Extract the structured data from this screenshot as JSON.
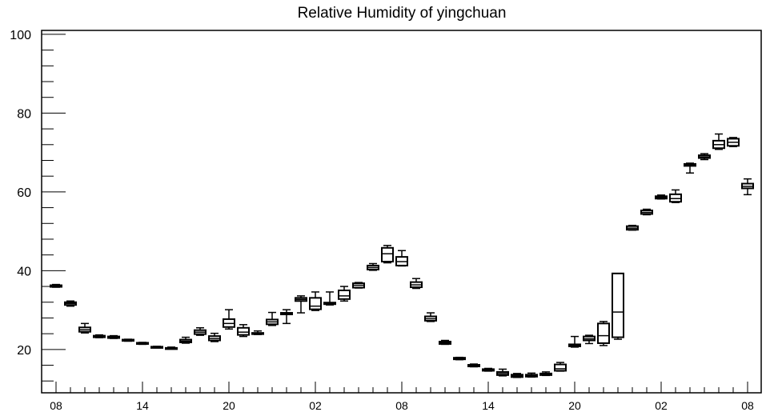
{
  "chart_data": {
    "type": "box",
    "title": "Relative Humidity of yingchuan",
    "xlabel": "",
    "ylabel": "",
    "ylim": [
      9,
      101
    ],
    "yticks": [
      20,
      40,
      60,
      80,
      100
    ],
    "x_tick_labels": [
      "08",
      "14",
      "20",
      "02",
      "08",
      "14",
      "20",
      "02",
      "08"
    ],
    "x_tick_label_steps": [
      0,
      6,
      12,
      18,
      24,
      30,
      36,
      42,
      48
    ],
    "grid": false,
    "legend": "none",
    "boxes": [
      {
        "step": 0,
        "min": 35.8,
        "q1": 35.9,
        "median": 36.1,
        "q3": 36.3,
        "max": 36.5
      },
      {
        "step": 1,
        "min": 31.0,
        "q1": 31.3,
        "median": 31.7,
        "q3": 32.0,
        "max": 32.3
      },
      {
        "step": 2,
        "min": 24.2,
        "q1": 24.5,
        "median": 25.0,
        "q3": 25.6,
        "max": 26.6
      },
      {
        "step": 3,
        "min": 23.0,
        "q1": 23.1,
        "median": 23.3,
        "q3": 23.5,
        "max": 23.7
      },
      {
        "step": 4,
        "min": 22.8,
        "q1": 22.9,
        "median": 23.1,
        "q3": 23.3,
        "max": 23.5
      },
      {
        "step": 5,
        "min": 22.1,
        "q1": 22.2,
        "median": 22.4,
        "q3": 22.5,
        "max": 22.6
      },
      {
        "step": 6,
        "min": 21.3,
        "q1": 21.4,
        "median": 21.6,
        "q3": 21.7,
        "max": 21.8
      },
      {
        "step": 7,
        "min": 20.4,
        "q1": 20.5,
        "median": 20.6,
        "q3": 20.7,
        "max": 20.8
      },
      {
        "step": 8,
        "min": 20.1,
        "q1": 20.2,
        "median": 20.3,
        "q3": 20.4,
        "max": 20.6
      },
      {
        "step": 9,
        "min": 21.6,
        "q1": 21.8,
        "median": 22.1,
        "q3": 22.5,
        "max": 23.1
      },
      {
        "step": 10,
        "min": 23.6,
        "q1": 23.9,
        "median": 24.4,
        "q3": 24.9,
        "max": 25.5
      },
      {
        "step": 11,
        "min": 22.0,
        "q1": 22.3,
        "median": 22.8,
        "q3": 23.4,
        "max": 24.1
      },
      {
        "step": 12,
        "min": 25.2,
        "q1": 25.7,
        "median": 26.6,
        "q3": 27.7,
        "max": 30.1
      },
      {
        "step": 13,
        "min": 23.3,
        "q1": 23.7,
        "median": 24.4,
        "q3": 25.5,
        "max": 26.3
      },
      {
        "step": 14,
        "min": 23.8,
        "q1": 24.0,
        "median": 24.1,
        "q3": 24.2,
        "max": 24.7
      },
      {
        "step": 15,
        "min": 26.1,
        "q1": 26.4,
        "median": 27.0,
        "q3": 27.6,
        "max": 29.4
      },
      {
        "step": 16,
        "min": 26.6,
        "q1": 28.9,
        "median": 29.1,
        "q3": 29.3,
        "max": 30.1
      },
      {
        "step": 17,
        "min": 29.3,
        "q1": 32.3,
        "median": 32.7,
        "q3": 33.1,
        "max": 33.6
      },
      {
        "step": 18,
        "min": 29.9,
        "q1": 30.2,
        "median": 31.0,
        "q3": 33.1,
        "max": 34.6
      },
      {
        "step": 19,
        "min": 31.3,
        "q1": 31.5,
        "median": 31.7,
        "q3": 31.9,
        "max": 34.6
      },
      {
        "step": 20,
        "min": 32.3,
        "q1": 32.8,
        "median": 33.6,
        "q3": 35.0,
        "max": 36.0
      },
      {
        "step": 21,
        "min": 35.6,
        "q1": 35.7,
        "median": 36.3,
        "q3": 36.8,
        "max": 37.0
      },
      {
        "step": 22,
        "min": 40.1,
        "q1": 40.3,
        "median": 40.8,
        "q3": 41.3,
        "max": 41.8
      },
      {
        "step": 23,
        "min": 42.0,
        "q1": 42.3,
        "median": 44.3,
        "q3": 45.8,
        "max": 46.4
      },
      {
        "step": 24,
        "min": 41.2,
        "q1": 41.3,
        "median": 42.3,
        "q3": 43.5,
        "max": 45.1
      },
      {
        "step": 25,
        "min": 35.5,
        "q1": 35.8,
        "median": 36.4,
        "q3": 37.1,
        "max": 38.0
      },
      {
        "step": 26,
        "min": 27.1,
        "q1": 27.3,
        "median": 27.8,
        "q3": 28.4,
        "max": 29.3
      },
      {
        "step": 27,
        "min": 21.3,
        "q1": 21.4,
        "median": 21.7,
        "q3": 22.0,
        "max": 22.3
      },
      {
        "step": 28,
        "min": 17.4,
        "q1": 17.5,
        "median": 17.7,
        "q3": 17.9,
        "max": 18.0
      },
      {
        "step": 29,
        "min": 15.6,
        "q1": 15.7,
        "median": 15.9,
        "q3": 16.1,
        "max": 16.3
      },
      {
        "step": 30,
        "min": 14.5,
        "q1": 14.6,
        "median": 14.8,
        "q3": 15.0,
        "max": 15.2
      },
      {
        "step": 31,
        "min": 13.3,
        "q1": 13.5,
        "median": 13.9,
        "q3": 14.3,
        "max": 15.0
      },
      {
        "step": 32,
        "min": 12.9,
        "q1": 13.0,
        "median": 13.3,
        "q3": 13.6,
        "max": 13.9
      },
      {
        "step": 33,
        "min": 13.0,
        "q1": 13.1,
        "median": 13.4,
        "q3": 13.6,
        "max": 14.0
      },
      {
        "step": 34,
        "min": 13.4,
        "q1": 13.5,
        "median": 13.7,
        "q3": 13.9,
        "max": 14.3
      },
      {
        "step": 35,
        "min": 14.5,
        "q1": 14.6,
        "median": 15.1,
        "q3": 16.2,
        "max": 16.7
      },
      {
        "step": 36,
        "min": 20.6,
        "q1": 20.8,
        "median": 21.0,
        "q3": 21.3,
        "max": 23.3
      },
      {
        "step": 37,
        "min": 21.5,
        "q1": 22.3,
        "median": 22.7,
        "q3": 23.3,
        "max": 23.6
      },
      {
        "step": 38,
        "min": 21.0,
        "q1": 21.6,
        "median": 23.5,
        "q3": 26.6,
        "max": 27.1
      },
      {
        "step": 39,
        "min": 22.6,
        "q1": 23.1,
        "median": 29.5,
        "q3": 39.3,
        "max": 39.3
      },
      {
        "step": 40,
        "min": 50.3,
        "q1": 50.4,
        "median": 50.8,
        "q3": 51.3,
        "max": 51.5
      },
      {
        "step": 41,
        "min": 54.2,
        "q1": 54.4,
        "median": 54.8,
        "q3": 55.3,
        "max": 55.6
      },
      {
        "step": 42,
        "min": 58.2,
        "q1": 58.3,
        "median": 58.6,
        "q3": 58.9,
        "max": 59.2
      },
      {
        "step": 43,
        "min": 57.3,
        "q1": 57.5,
        "median": 58.3,
        "q3": 59.4,
        "max": 60.5
      },
      {
        "step": 44,
        "min": 64.8,
        "q1": 66.6,
        "median": 66.9,
        "q3": 67.1,
        "max": 67.3
      },
      {
        "step": 45,
        "min": 68.2,
        "q1": 68.6,
        "median": 68.9,
        "q3": 69.3,
        "max": 69.7
      },
      {
        "step": 46,
        "min": 70.8,
        "q1": 71.1,
        "median": 72.0,
        "q3": 73.0,
        "max": 74.7
      },
      {
        "step": 47,
        "min": 71.5,
        "q1": 71.7,
        "median": 72.6,
        "q3": 73.5,
        "max": 73.8
      },
      {
        "step": 48,
        "min": 59.3,
        "q1": 60.9,
        "median": 61.4,
        "q3": 62.1,
        "max": 63.3
      }
    ]
  }
}
